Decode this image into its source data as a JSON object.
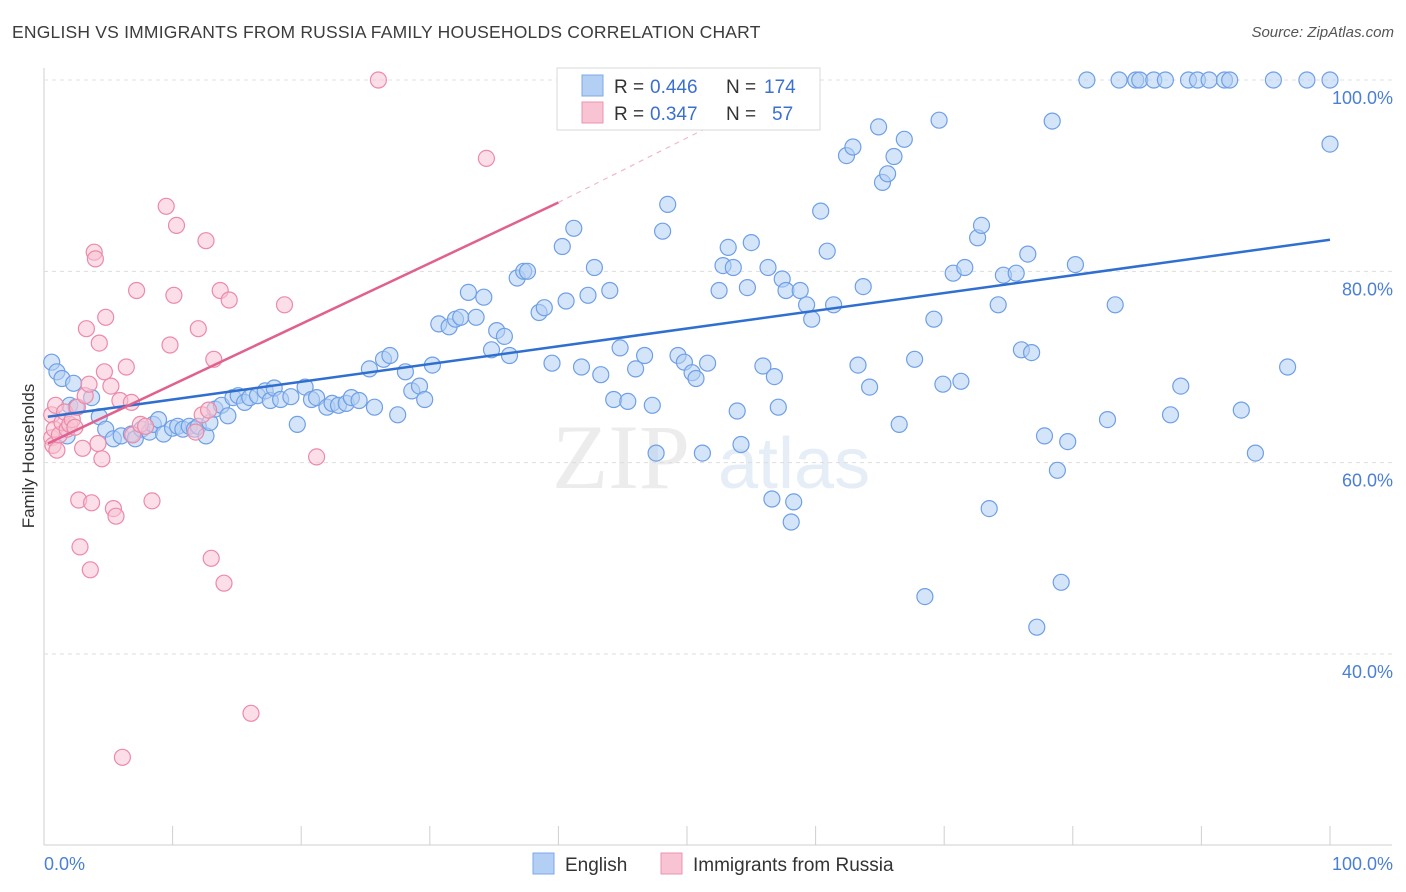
{
  "header": {
    "title": "ENGLISH VS IMMIGRANTS FROM RUSSIA FAMILY HOUSEHOLDS CORRELATION CHART",
    "source": "Source: ZipAtlas.com"
  },
  "watermark": {
    "zip": "ZIP",
    "atlas": "atlas"
  },
  "legend_top": {
    "r_label": "R =",
    "n_label": "N =",
    "rows": [
      {
        "series": "English",
        "r": "0.446",
        "n": "174",
        "color": "#9dbff0"
      },
      {
        "series": "Immigrants from Russia",
        "r": "0.347",
        "n": "57",
        "color": "#f5afc4"
      }
    ]
  },
  "legend_bottom": [
    {
      "label": "English",
      "color": "#9dbff0"
    },
    {
      "label": "Immigrants from Russia",
      "color": "#f5afc4"
    }
  ],
  "chart_data": {
    "type": "scatter",
    "title": "ENGLISH VS IMMIGRANTS FROM RUSSIA FAMILY HOUSEHOLDS CORRELATION CHART",
    "xlabel": "",
    "ylabel": "Family Households",
    "xlim": [
      0,
      100
    ],
    "ylim": [
      22,
      102
    ],
    "x_tick_labels": [
      "0.0%",
      "100.0%"
    ],
    "y_ticks": [
      40,
      60,
      80,
      100
    ],
    "y_tick_labels": [
      "40.0%",
      "60.0%",
      "80.0%",
      "100.0%"
    ],
    "grid": true,
    "series": [
      {
        "name": "English",
        "color": "#6f9fe6",
        "fill": "#b3cff4",
        "trend": {
          "x0": 0.3,
          "y0": 64.8,
          "x1": 100,
          "y1": 83.3,
          "color": "#2f6fd0"
        },
        "points": [
          [
            0.6,
            70.5
          ],
          [
            1.0,
            69.5
          ],
          [
            1.4,
            68.8
          ],
          [
            2.3,
            68.3
          ],
          [
            2.0,
            66.0
          ],
          [
            3.7,
            66.8
          ],
          [
            2.5,
            65.8
          ],
          [
            4.3,
            64.8
          ],
          [
            1.8,
            62.8
          ],
          [
            4.8,
            63.5
          ],
          [
            5.4,
            62.5
          ],
          [
            6.0,
            62.8
          ],
          [
            6.8,
            63.0
          ],
          [
            7.1,
            62.5
          ],
          [
            7.6,
            63.5
          ],
          [
            8.2,
            63.2
          ],
          [
            8.5,
            64.0
          ],
          [
            8.9,
            64.5
          ],
          [
            9.3,
            63.0
          ],
          [
            10.0,
            63.6
          ],
          [
            10.4,
            63.8
          ],
          [
            10.8,
            63.5
          ],
          [
            11.3,
            63.8
          ],
          [
            11.7,
            63.5
          ],
          [
            12.0,
            63.8
          ],
          [
            12.6,
            62.8
          ],
          [
            12.9,
            64.2
          ],
          [
            13.3,
            65.6
          ],
          [
            13.8,
            66.0
          ],
          [
            14.3,
            64.9
          ],
          [
            14.7,
            66.8
          ],
          [
            15.1,
            67.0
          ],
          [
            15.6,
            66.3
          ],
          [
            16.0,
            66.8
          ],
          [
            16.6,
            67.0
          ],
          [
            17.2,
            67.5
          ],
          [
            17.6,
            66.5
          ],
          [
            17.9,
            67.8
          ],
          [
            18.4,
            66.6
          ],
          [
            19.2,
            66.9
          ],
          [
            19.7,
            64.0
          ],
          [
            20.3,
            67.9
          ],
          [
            20.8,
            66.6
          ],
          [
            21.2,
            66.8
          ],
          [
            22.0,
            65.8
          ],
          [
            22.4,
            66.2
          ],
          [
            22.9,
            66.0
          ],
          [
            23.5,
            66.2
          ],
          [
            23.9,
            66.8
          ],
          [
            24.5,
            66.5
          ],
          [
            25.3,
            69.8
          ],
          [
            25.7,
            65.8
          ],
          [
            26.4,
            70.8
          ],
          [
            26.9,
            71.2
          ],
          [
            27.5,
            65.0
          ],
          [
            28.1,
            69.5
          ],
          [
            28.6,
            67.5
          ],
          [
            29.2,
            68.0
          ],
          [
            29.6,
            66.6
          ],
          [
            30.2,
            70.2
          ],
          [
            30.7,
            74.5
          ],
          [
            31.5,
            74.2
          ],
          [
            32.0,
            75.0
          ],
          [
            32.4,
            75.2
          ],
          [
            33.0,
            77.8
          ],
          [
            33.6,
            75.2
          ],
          [
            34.2,
            77.3
          ],
          [
            34.8,
            71.8
          ],
          [
            35.2,
            73.8
          ],
          [
            35.8,
            73.2
          ],
          [
            36.2,
            71.2
          ],
          [
            36.8,
            79.3
          ],
          [
            37.3,
            80.0
          ],
          [
            37.6,
            80.0
          ],
          [
            38.5,
            75.7
          ],
          [
            38.9,
            76.2
          ],
          [
            39.5,
            70.4
          ],
          [
            40.3,
            82.6
          ],
          [
            40.6,
            76.9
          ],
          [
            41.2,
            84.5
          ],
          [
            41.8,
            70.0
          ],
          [
            42.3,
            77.5
          ],
          [
            42.8,
            80.4
          ],
          [
            43.3,
            69.2
          ],
          [
            44.0,
            78.0
          ],
          [
            44.3,
            66.6
          ],
          [
            44.8,
            72.0
          ],
          [
            45.4,
            66.4
          ],
          [
            46.0,
            69.8
          ],
          [
            46.7,
            71.2
          ],
          [
            47.3,
            66.0
          ],
          [
            47.6,
            61.0
          ],
          [
            48.1,
            84.2
          ],
          [
            48.5,
            87.0
          ],
          [
            49.3,
            71.2
          ],
          [
            49.8,
            70.5
          ],
          [
            50.4,
            69.4
          ],
          [
            50.7,
            68.8
          ],
          [
            51.2,
            61.0
          ],
          [
            51.6,
            70.4
          ],
          [
            52.5,
            78.0
          ],
          [
            52.8,
            80.6
          ],
          [
            53.2,
            82.5
          ],
          [
            53.6,
            80.4
          ],
          [
            53.9,
            65.4
          ],
          [
            54.2,
            61.9
          ],
          [
            54.7,
            78.3
          ],
          [
            55.0,
            83.0
          ],
          [
            55.9,
            70.1
          ],
          [
            56.3,
            80.4
          ],
          [
            56.6,
            56.2
          ],
          [
            56.8,
            69.0
          ],
          [
            57.1,
            65.8
          ],
          [
            57.4,
            79.2
          ],
          [
            57.7,
            78.0
          ],
          [
            58.1,
            53.8
          ],
          [
            58.3,
            55.9
          ],
          [
            58.8,
            78.0
          ],
          [
            59.3,
            76.5
          ],
          [
            59.7,
            75.0
          ],
          [
            60.4,
            86.3
          ],
          [
            60.9,
            82.1
          ],
          [
            61.4,
            76.5
          ],
          [
            62.4,
            92.1
          ],
          [
            62.9,
            93.0
          ],
          [
            63.3,
            70.2
          ],
          [
            63.7,
            78.4
          ],
          [
            64.2,
            67.9
          ],
          [
            64.9,
            95.1
          ],
          [
            65.2,
            89.3
          ],
          [
            65.6,
            90.2
          ],
          [
            66.1,
            92.0
          ],
          [
            66.5,
            64.0
          ],
          [
            66.9,
            93.8
          ],
          [
            67.7,
            70.8
          ],
          [
            68.5,
            46.0
          ],
          [
            69.2,
            75.0
          ],
          [
            69.6,
            95.8
          ],
          [
            69.9,
            68.2
          ],
          [
            70.7,
            79.8
          ],
          [
            71.3,
            68.5
          ],
          [
            71.6,
            80.4
          ],
          [
            72.6,
            83.5
          ],
          [
            72.9,
            84.8
          ],
          [
            73.5,
            55.2
          ],
          [
            74.2,
            76.5
          ],
          [
            74.6,
            79.6
          ],
          [
            75.6,
            79.8
          ],
          [
            76.0,
            71.8
          ],
          [
            76.5,
            81.8
          ],
          [
            76.8,
            71.5
          ],
          [
            77.2,
            42.8
          ],
          [
            77.8,
            62.8
          ],
          [
            78.4,
            95.7
          ],
          [
            78.8,
            59.2
          ],
          [
            79.1,
            47.5
          ],
          [
            79.6,
            62.2
          ],
          [
            80.2,
            80.7
          ],
          [
            81.1,
            100
          ],
          [
            82.7,
            64.5
          ],
          [
            83.3,
            76.5
          ],
          [
            83.6,
            100
          ],
          [
            84.9,
            100
          ],
          [
            85.2,
            100
          ],
          [
            86.3,
            100
          ],
          [
            87.2,
            100
          ],
          [
            87.6,
            65.0
          ],
          [
            88.4,
            68.0
          ],
          [
            89.0,
            100
          ],
          [
            89.7,
            100
          ],
          [
            90.6,
            100
          ],
          [
            91.8,
            100
          ],
          [
            92.2,
            100
          ],
          [
            93.1,
            65.5
          ],
          [
            94.2,
            61.0
          ],
          [
            95.6,
            100
          ],
          [
            96.7,
            70.0
          ],
          [
            98.2,
            100
          ],
          [
            100.0,
            93.3
          ],
          [
            100.0,
            100
          ]
        ]
      },
      {
        "name": "Immigrants from Russia",
        "color": "#ec8aa8",
        "fill": "#f8c3d3",
        "trend": {
          "x0": 0.3,
          "y0": 62.0,
          "x1": 40.0,
          "y1": 87.2,
          "color": "#e0608e",
          "dashed_to": {
            "x": 56.0,
            "y": 98.0
          }
        },
        "points": [
          [
            0.6,
            62.6
          ],
          [
            0.6,
            65.0
          ],
          [
            0.7,
            61.8
          ],
          [
            0.8,
            63.5
          ],
          [
            0.9,
            66.0
          ],
          [
            1.0,
            61.3
          ],
          [
            1.2,
            62.9
          ],
          [
            1.4,
            64.2
          ],
          [
            1.6,
            65.3
          ],
          [
            1.8,
            63.5
          ],
          [
            2.0,
            64.0
          ],
          [
            2.2,
            64.5
          ],
          [
            2.4,
            63.7
          ],
          [
            2.6,
            65.8
          ],
          [
            2.7,
            56.1
          ],
          [
            2.8,
            51.2
          ],
          [
            3.0,
            61.5
          ],
          [
            3.2,
            67.0
          ],
          [
            3.3,
            74.0
          ],
          [
            3.5,
            68.2
          ],
          [
            3.6,
            48.8
          ],
          [
            3.7,
            55.8
          ],
          [
            3.9,
            82.0
          ],
          [
            4.0,
            81.3
          ],
          [
            4.2,
            62.0
          ],
          [
            4.3,
            72.5
          ],
          [
            4.5,
            60.4
          ],
          [
            4.7,
            69.5
          ],
          [
            4.8,
            75.2
          ],
          [
            5.2,
            68.0
          ],
          [
            5.4,
            55.2
          ],
          [
            5.6,
            54.4
          ],
          [
            5.9,
            66.5
          ],
          [
            6.1,
            29.2
          ],
          [
            6.4,
            70.0
          ],
          [
            6.8,
            66.3
          ],
          [
            6.9,
            62.9
          ],
          [
            7.2,
            78.0
          ],
          [
            7.5,
            64.0
          ],
          [
            7.9,
            63.8
          ],
          [
            8.4,
            56.0
          ],
          [
            9.5,
            86.8
          ],
          [
            9.8,
            72.3
          ],
          [
            10.1,
            77.5
          ],
          [
            10.3,
            84.8
          ],
          [
            11.8,
            63.2
          ],
          [
            12.0,
            74.0
          ],
          [
            12.3,
            65.0
          ],
          [
            12.6,
            83.2
          ],
          [
            12.8,
            65.5
          ],
          [
            13.0,
            50.0
          ],
          [
            13.2,
            70.8
          ],
          [
            13.7,
            78.0
          ],
          [
            14.0,
            47.4
          ],
          [
            14.4,
            77.0
          ],
          [
            16.1,
            33.8
          ],
          [
            18.7,
            76.5
          ],
          [
            21.2,
            60.6
          ],
          [
            26.0,
            100
          ],
          [
            34.4,
            91.8
          ]
        ]
      }
    ]
  }
}
